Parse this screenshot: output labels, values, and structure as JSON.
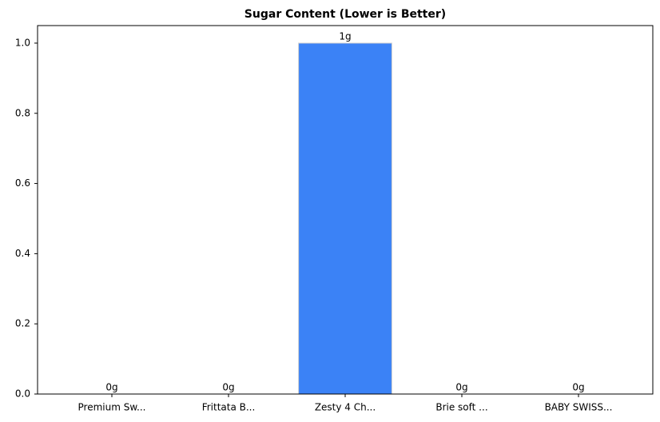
{
  "chart_data": {
    "type": "bar",
    "title": "Sugar Content (Lower is Better)",
    "categories": [
      "Premium Sw...",
      "Frittata B...",
      "Zesty 4 Ch...",
      "Brie soft ...",
      "BABY SWISS..."
    ],
    "values": [
      0,
      0,
      1,
      0,
      0
    ],
    "value_labels": [
      "0g",
      "0g",
      "1g",
      "0g",
      "0g"
    ],
    "color": "#3b82f6",
    "ylim": [
      0,
      1.05
    ],
    "yticks": [
      {
        "value": 0,
        "label": "0.0"
      },
      0.2,
      0.4,
      0.6,
      0.8,
      {
        "value": 1,
        "label": "1.0"
      }
    ],
    "grid": false
  }
}
